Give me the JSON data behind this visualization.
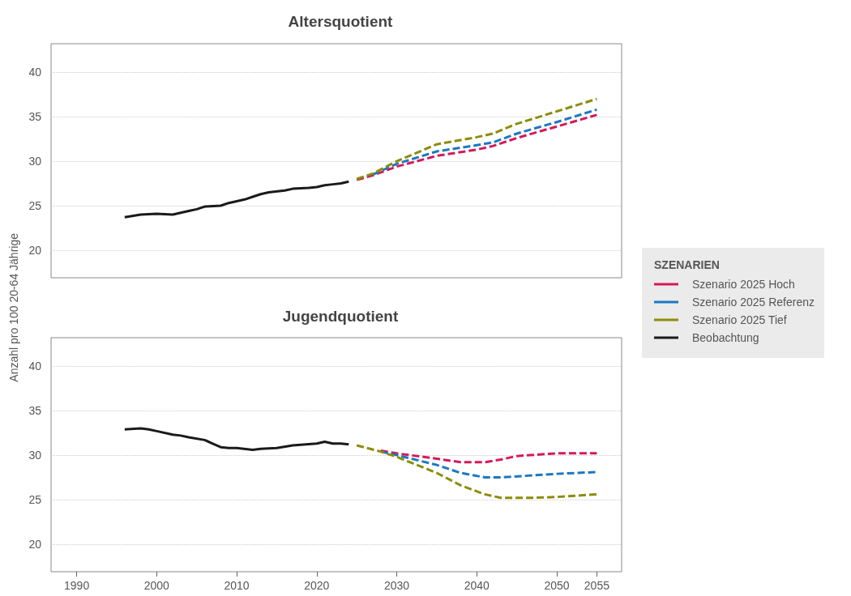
{
  "chart_data": [
    {
      "type": "line",
      "title": "Altersquotient",
      "ylabel": "Anzahl pro 100 20-64 Jährige",
      "legend_title": "SZENARIEN",
      "legend": "right",
      "grid": "y",
      "tick_labels": "y",
      "marker": "none",
      "xlim": [
        1986.8,
        2058.1
      ],
      "ylim": [
        16.9,
        43.2
      ],
      "yticks": [
        20,
        25,
        30,
        35,
        40
      ],
      "series": [
        {
          "name": "Szenario 2025 Hoch",
          "color": "#d6185a",
          "line_style": "dashed",
          "x": [
            2025,
            2027,
            2030,
            2035,
            2040,
            2042,
            2045,
            2050,
            2055
          ],
          "values": [
            27.9,
            28.4,
            29.4,
            30.6,
            31.3,
            31.7,
            32.6,
            33.9,
            35.2
          ]
        },
        {
          "name": "Szenario 2025 Referenz",
          "color": "#1a78c2",
          "line_style": "dashed",
          "x": [
            2027,
            2030,
            2035,
            2040,
            2042,
            2045,
            2050,
            2055
          ],
          "values": [
            28.5,
            29.7,
            31.1,
            31.8,
            32.1,
            33.1,
            34.4,
            35.8
          ]
        },
        {
          "name": "Szenario 2025 Tief",
          "color": "#8c8c0a",
          "line_style": "dashed",
          "x": [
            2025,
            2027,
            2030,
            2035,
            2040,
            2042,
            2045,
            2050,
            2055
          ],
          "values": [
            28.0,
            28.6,
            30.0,
            31.9,
            32.7,
            33.1,
            34.2,
            35.6,
            37.0
          ]
        },
        {
          "name": "Beobachtung",
          "color": "#1a1a1a",
          "line_style": "solid",
          "x": [
            1996,
            1998,
            2000,
            2002,
            2003,
            2004,
            2005,
            2006,
            2008,
            2009,
            2010,
            2011,
            2012,
            2013,
            2014,
            2016,
            2017,
            2019,
            2020,
            2021,
            2022,
            2023,
            2024
          ],
          "values": [
            23.7,
            24.0,
            24.1,
            24.0,
            24.2,
            24.4,
            24.6,
            24.9,
            25.0,
            25.3,
            25.5,
            25.7,
            26.0,
            26.3,
            26.5,
            26.7,
            26.9,
            27.0,
            27.1,
            27.3,
            27.4,
            27.5,
            27.7
          ]
        }
      ]
    },
    {
      "type": "line",
      "title": "Jugendquotient",
      "grid": "y",
      "marker": "none",
      "xlim": [
        1986.8,
        2058.1
      ],
      "xticks": [
        1990,
        2000,
        2010,
        2020,
        2030,
        2040,
        2050,
        2055
      ],
      "ylim": [
        16.9,
        43.2
      ],
      "yticks": [
        20,
        25,
        30,
        35,
        40
      ],
      "series": [
        {
          "color": "#d6185a",
          "line_style": "dashed",
          "x": [
            2028,
            2030,
            2035,
            2038,
            2041,
            2043,
            2045,
            2050,
            2055
          ],
          "values": [
            30.5,
            30.2,
            29.6,
            29.2,
            29.2,
            29.5,
            29.9,
            30.2,
            30.2
          ]
        },
        {
          "color": "#1a78c2",
          "line_style": "dashed",
          "x": [
            2028,
            2030,
            2035,
            2038,
            2041,
            2043,
            2050,
            2055
          ],
          "values": [
            30.4,
            30.0,
            28.9,
            28.0,
            27.5,
            27.5,
            27.9,
            28.1
          ]
        },
        {
          "color": "#8c8c0a",
          "line_style": "dashed",
          "x": [
            2025,
            2028,
            2030,
            2035,
            2038,
            2041,
            2043,
            2047,
            2050,
            2055
          ],
          "values": [
            31.1,
            30.4,
            29.8,
            28.0,
            26.6,
            25.6,
            25.2,
            25.2,
            25.3,
            25.6
          ]
        },
        {
          "color": "#1a1a1a",
          "line_style": "solid",
          "x": [
            1996,
            1998,
            1999,
            2000,
            2002,
            2003,
            2004,
            2006,
            2007,
            2008,
            2009,
            2010,
            2012,
            2013,
            2015,
            2017,
            2020,
            2021,
            2022,
            2023,
            2024
          ],
          "values": [
            32.9,
            33.0,
            32.9,
            32.7,
            32.3,
            32.2,
            32.0,
            31.7,
            31.3,
            30.9,
            30.8,
            30.8,
            30.6,
            30.7,
            30.8,
            31.1,
            31.3,
            31.5,
            31.3,
            31.3,
            31.2
          ]
        }
      ]
    }
  ]
}
